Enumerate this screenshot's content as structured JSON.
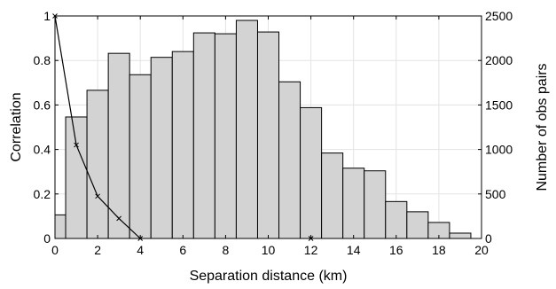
{
  "chart_data": {
    "type": "bar",
    "xlabel": "Separation distance (km)",
    "ylabel_left": "Correlation",
    "ylabel_right": "Number of obs pairs",
    "xlim": [
      0,
      20
    ],
    "ylim_left": [
      0,
      1
    ],
    "ylim_right": [
      0,
      2500
    ],
    "grid": true,
    "xticks": [
      "0",
      "2",
      "4",
      "6",
      "8",
      "10",
      "12",
      "14",
      "16",
      "18",
      "20"
    ],
    "yticks_left": [
      "0",
      "0.2",
      "0.4",
      "0.6",
      "0.8",
      "1"
    ],
    "yticks_right": [
      "0",
      "500",
      "1000",
      "1500",
      "2000",
      "2500"
    ],
    "bar_color": "#d3d3d3",
    "histogram": {
      "name": "Number of obs pairs",
      "bin_edges": [
        0,
        0.5,
        1.5,
        2.5,
        3.5,
        4.5,
        5.5,
        6.5,
        7.5,
        8.5,
        9.5,
        10.5,
        11.5,
        12.5,
        13.5,
        14.5,
        15.5,
        16.5,
        17.5,
        18.5,
        19.5
      ],
      "values": [
        265,
        1365,
        1665,
        2080,
        1840,
        2035,
        2100,
        2310,
        2300,
        2450,
        2320,
        1760,
        1470,
        960,
        790,
        760,
        415,
        300,
        180,
        60
      ]
    },
    "correlation": {
      "name": "Correlation",
      "x": [
        0,
        1,
        2,
        3,
        4
      ],
      "y": [
        1.0,
        0.42,
        0.19,
        0.09,
        0.0
      ]
    },
    "extra_marker": {
      "x": 12,
      "y": 0.0
    }
  }
}
